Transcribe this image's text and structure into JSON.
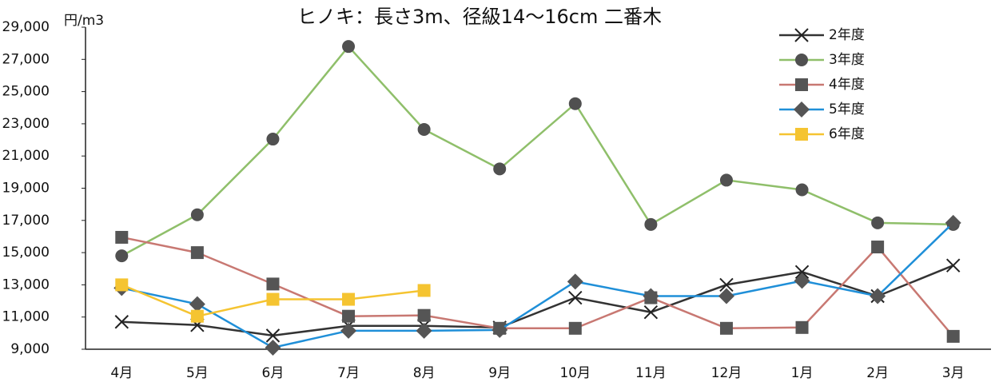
{
  "chart_data": {
    "type": "line",
    "title": "ヒノキ：長さ3m、径級14～16cm 二番木",
    "y_label": "円/m3",
    "categories": [
      "4月",
      "5月",
      "6月",
      "7月",
      "8月",
      "9月",
      "10月",
      "11月",
      "12月",
      "1月",
      "2月",
      "3月"
    ],
    "series": [
      {
        "name": "2年度",
        "color": "#333333",
        "marker": "x",
        "marker_color": "#222222",
        "values": [
          10700,
          10500,
          9850,
          10450,
          10450,
          10350,
          12200,
          11300,
          13000,
          13800,
          12300,
          14200
        ]
      },
      {
        "name": "3年度",
        "color": "#8fbf6a",
        "marker": "circle",
        "marker_color": "#505050",
        "values": [
          14800,
          17350,
          22050,
          27800,
          22650,
          20200,
          24250,
          16750,
          19500,
          18900,
          16850,
          16750
        ]
      },
      {
        "name": "4年度",
        "color": "#c87872",
        "marker": "square",
        "marker_color": "#555555",
        "values": [
          15950,
          15000,
          13050,
          11050,
          11100,
          10300,
          10300,
          12200,
          10300,
          10350,
          15350,
          9800
        ]
      },
      {
        "name": "5年度",
        "color": "#1f8fd8",
        "marker": "diamond",
        "marker_color": "#555555",
        "values": [
          12800,
          11800,
          9100,
          10150,
          10150,
          10200,
          13200,
          12300,
          12300,
          13250,
          12300,
          16850
        ]
      },
      {
        "name": "6年度",
        "color": "#f5c431",
        "marker": "square",
        "marker_color": "#f5c431",
        "values": [
          13000,
          11050,
          12100,
          12100,
          12650,
          null,
          null,
          null,
          null,
          null,
          null,
          null
        ]
      }
    ],
    "ylim": [
      9000,
      29000
    ],
    "yticks": [
      {
        "value": 9000,
        "label": "9,000"
      },
      {
        "value": 11000,
        "label": "11,000"
      },
      {
        "value": 13000,
        "label": "13,000"
      },
      {
        "value": 15000,
        "label": "15,000"
      },
      {
        "value": 17000,
        "label": "17,000"
      },
      {
        "value": 19000,
        "label": "19,000"
      },
      {
        "value": 21000,
        "label": "21,000"
      },
      {
        "value": 23000,
        "label": "23,000"
      },
      {
        "value": 25000,
        "label": "25,000"
      },
      {
        "value": 27000,
        "label": "27,000"
      },
      {
        "value": 29000,
        "label": "29,000"
      }
    ],
    "grid": false,
    "legend": "top-right"
  }
}
